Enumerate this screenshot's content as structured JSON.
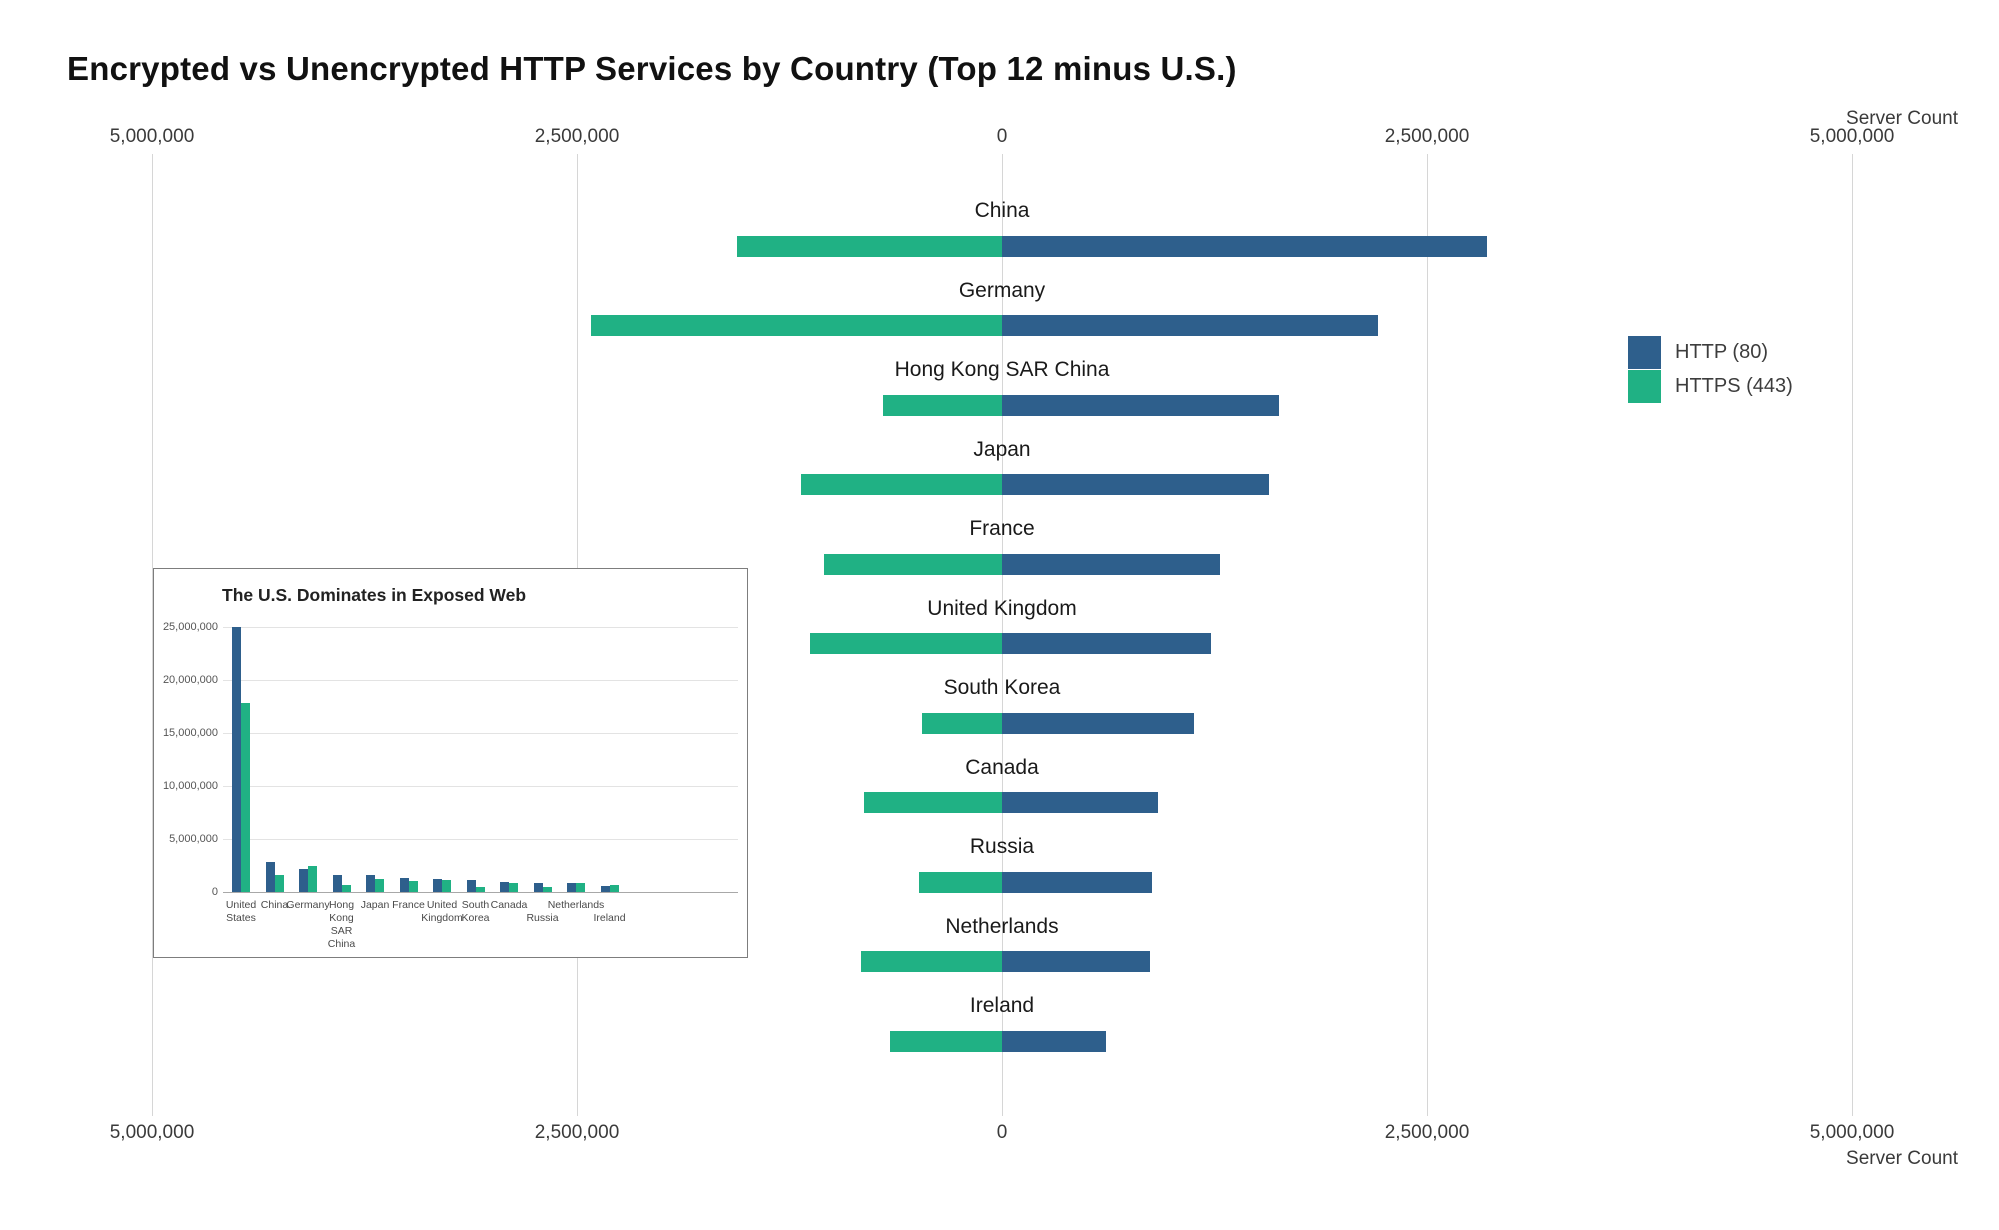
{
  "page": {
    "title": "Encrypted vs Unencrypted HTTP Services by Country (Top 12 minus U.S.)"
  },
  "colors": {
    "http": "#2e5f8c",
    "https": "#20b184",
    "grid": "#d6d6d6",
    "inset_grid": "#e3e3e3",
    "inset_axis_line": "#a8a8a8",
    "axis_text": "#3a3a3a",
    "label_text": "#1a1a1a"
  },
  "legend": {
    "items": [
      {
        "label": "HTTP (80)",
        "series": "http"
      },
      {
        "label": "HTTPS (443)",
        "series": "https"
      }
    ]
  },
  "main_axis": {
    "title_top": "Server Count",
    "title_bottom": "Server Count",
    "ticks": [
      {
        "value": -5000000,
        "label": "5,000,000"
      },
      {
        "value": -2500000,
        "label": "2,500,000"
      },
      {
        "value": 0,
        "label": "0"
      },
      {
        "value": 2500000,
        "label": "2,500,000"
      },
      {
        "value": 5000000,
        "label": "5,000,000"
      }
    ]
  },
  "chart_data": [
    {
      "id": "main",
      "type": "bar",
      "orientation": "horizontal-diverging",
      "title": "Encrypted vs Unencrypted HTTP Services by Country (Top 12 minus U.S.)",
      "xlabel": "Server Count",
      "xlim": [
        -5000000,
        5000000
      ],
      "grid": true,
      "legend_position": "right",
      "categories": [
        "China",
        "Germany",
        "Hong Kong SAR China",
        "Japan",
        "France",
        "United Kingdom",
        "South Korea",
        "Canada",
        "Russia",
        "Netherlands",
        "Ireland"
      ],
      "series": [
        {
          "name": "HTTP (80)",
          "direction": "right",
          "values": [
            2850000,
            2210000,
            1630000,
            1570000,
            1280000,
            1230000,
            1130000,
            920000,
            880000,
            870000,
            610000
          ]
        },
        {
          "name": "HTTPS (443)",
          "direction": "left",
          "values": [
            1560000,
            2420000,
            700000,
            1180000,
            1050000,
            1130000,
            470000,
            810000,
            490000,
            830000,
            660000
          ]
        }
      ]
    },
    {
      "id": "inset",
      "type": "bar",
      "orientation": "vertical-grouped",
      "title": "The U.S. Dominates in Exposed Web",
      "ylim": [
        0,
        25000000
      ],
      "grid": true,
      "categories": [
        "United States",
        "China",
        "Germany",
        "Hong Kong SAR China",
        "Japan",
        "France",
        "United Kingdom",
        "South Korea",
        "Canada",
        "Russia",
        "Netherlands",
        "Ireland"
      ],
      "label_lines": [
        [
          "United",
          "States"
        ],
        [
          "China"
        ],
        [
          "Germany"
        ],
        [
          "Hong",
          "Kong",
          "SAR",
          "China"
        ],
        [
          "Japan"
        ],
        [
          "France"
        ],
        [
          "United",
          "Kingdom"
        ],
        [
          "South",
          "Korea"
        ],
        [
          "Canada"
        ],
        [
          "Russia"
        ],
        [
          "Netherlands"
        ],
        [
          "Ireland"
        ]
      ],
      "label_row_offset": [
        0,
        0,
        0,
        0,
        0,
        0,
        0,
        0,
        0,
        1,
        0,
        1
      ],
      "yticks": [
        {
          "value": 0,
          "label": "0"
        },
        {
          "value": 5000000,
          "label": "5,000,000"
        },
        {
          "value": 10000000,
          "label": "10,000,000"
        },
        {
          "value": 15000000,
          "label": "15,000,000"
        },
        {
          "value": 20000000,
          "label": "20,000,000"
        },
        {
          "value": 25000000,
          "label": "25,000,000"
        }
      ],
      "series": [
        {
          "name": "HTTP (80)",
          "values": [
            25000000,
            2850000,
            2210000,
            1630000,
            1570000,
            1280000,
            1230000,
            1130000,
            920000,
            880000,
            870000,
            610000
          ]
        },
        {
          "name": "HTTPS (443)",
          "values": [
            17800000,
            1560000,
            2420000,
            700000,
            1180000,
            1050000,
            1130000,
            470000,
            810000,
            490000,
            830000,
            660000
          ]
        }
      ]
    }
  ]
}
